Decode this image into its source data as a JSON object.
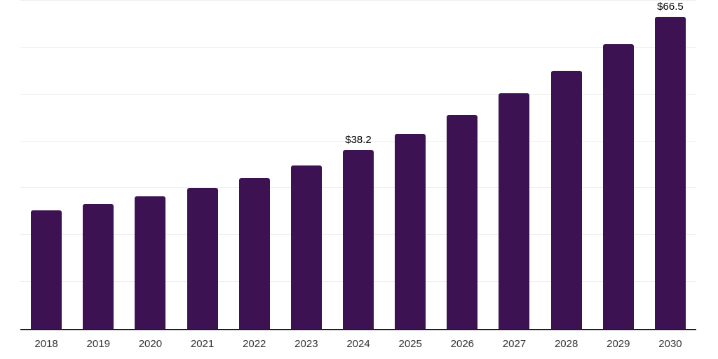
{
  "chart_data": {
    "type": "bar",
    "title": "",
    "xlabel": "",
    "ylabel": "",
    "categories": [
      "2018",
      "2019",
      "2020",
      "2021",
      "2022",
      "2023",
      "2024",
      "2025",
      "2026",
      "2027",
      "2028",
      "2029",
      "2030"
    ],
    "values": [
      25.3,
      26.7,
      28.3,
      30.1,
      32.2,
      34.9,
      38.2,
      41.6,
      45.6,
      50.2,
      55.0,
      60.7,
      66.5
    ],
    "point_labels": [
      "",
      "",
      "",
      "",
      "",
      "",
      "$38.2",
      "",
      "",
      "",
      "",
      "",
      "$66.5"
    ],
    "ylim": [
      0,
      70
    ],
    "gridline_step": 10,
    "grid": true,
    "legend": false,
    "bar_color": "#3c1252",
    "gridline_color": "#efefef",
    "axis_color": "#1f1f1f",
    "tick_label_color": "#333333",
    "data_label_color": "#000000",
    "background": "#ffffff"
  }
}
